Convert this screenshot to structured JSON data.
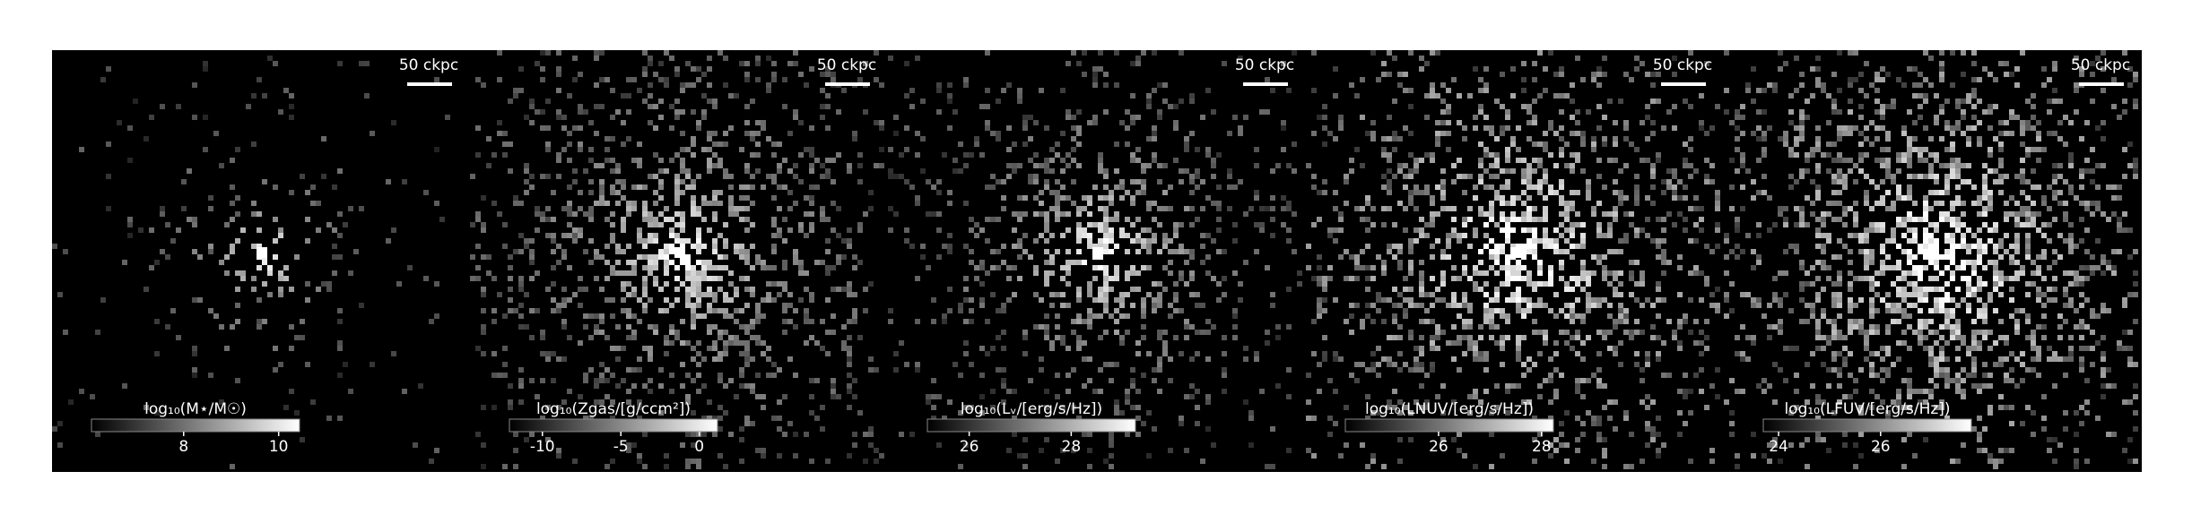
{
  "panels": [
    {
      "scale_label": "50 ckpc",
      "colorbar": {
        "label": "log₁₀(M⋆/M☉)",
        "lim": [
          6.06,
          10.44
        ],
        "ticks": [
          8,
          10
        ]
      }
    },
    {
      "scale_label": "50 ckpc",
      "colorbar": {
        "label": "log₁₀(Zgas/[g/ccm²])",
        "lim": [
          -12.1,
          1.16
        ],
        "ticks": [
          -10,
          -5,
          0
        ]
      }
    },
    {
      "scale_label": "50 ckpc",
      "colorbar": {
        "label": "log₁₀(Lᵥ/[erg/s/Hz])",
        "lim": [
          25.18,
          29.26
        ],
        "ticks": [
          26,
          28
        ]
      }
    },
    {
      "scale_label": "50 ckpc",
      "colorbar": {
        "label": "log₁₀(LNUV/[erg/s/Hz])",
        "lim": [
          24.19,
          28.23
        ],
        "ticks": [
          26,
          28
        ]
      }
    },
    {
      "scale_label": "50 ckpc",
      "colorbar": {
        "label": "log₁₀(LFUV/[erg/s/Hz])",
        "lim": [
          23.7,
          27.78
        ],
        "ticks": [
          24,
          26
        ]
      }
    }
  ]
}
